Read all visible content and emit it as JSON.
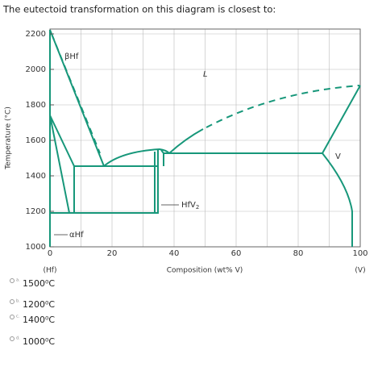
{
  "question": "The eutectoid transformation on this diagram is closest to:",
  "diagram": {
    "y_axis_label": "Temperature (°C)",
    "y_ticks": [
      "2200",
      "2000",
      "1800",
      "1600",
      "1400",
      "1200",
      "1000"
    ],
    "x_ticks": [
      "0",
      "20",
      "40",
      "60",
      "80",
      "100"
    ],
    "x_axis_label": "Composition (wt% V)",
    "x_left_label": "(Hf)",
    "x_right_label": "(V)",
    "phase_labels": {
      "beta": "βHf",
      "alpha": "αHf",
      "liquid": "L",
      "compound": "HfV",
      "compound_sub": "2",
      "v": "V"
    }
  },
  "options": [
    {
      "letter": "a.",
      "text": "1500⁰C"
    },
    {
      "letter": "b.",
      "text": "1200⁰C"
    },
    {
      "letter": "c.",
      "text": "1400⁰C"
    },
    {
      "letter": "d.",
      "text": "1000⁰C"
    }
  ]
}
